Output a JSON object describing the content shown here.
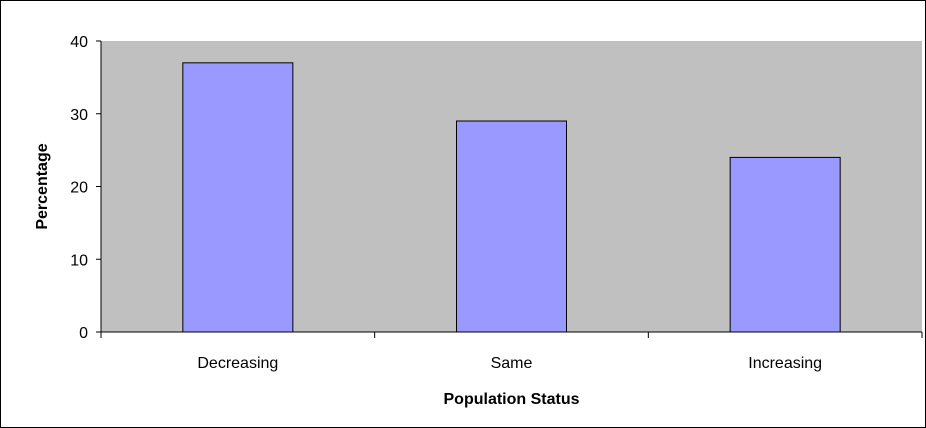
{
  "chart_data": {
    "type": "bar",
    "title": "",
    "xlabel": "Population Status",
    "ylabel": "Percentage",
    "categories": [
      "Decreasing",
      "Same",
      "Increasing"
    ],
    "values": [
      37,
      29,
      24
    ],
    "ylim": [
      0,
      40
    ],
    "yticks": [
      0,
      10,
      20,
      30,
      40
    ],
    "yticks_text": [
      "0",
      "10",
      "20",
      "30",
      "40"
    ],
    "grid": false,
    "legend": "none",
    "colors": {
      "plot_background": "#c0c0c0",
      "bar_fill": "#9999ff",
      "bar_stroke": "#000000",
      "axis": "#000000"
    }
  }
}
